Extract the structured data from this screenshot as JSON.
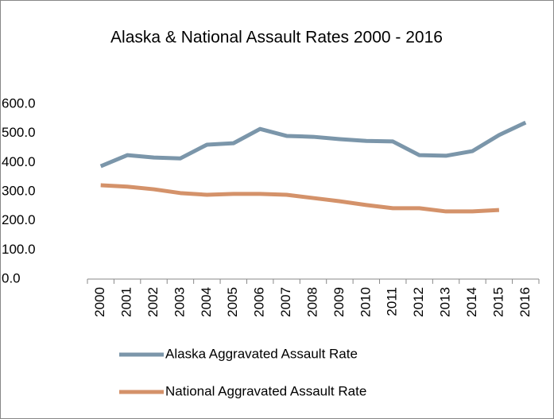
{
  "chart_data": {
    "type": "line",
    "title": "Alaska & National Assault Rates 2000 - 2016",
    "categories": [
      "2000",
      "2001",
      "2002",
      "2003",
      "2004",
      "2005",
      "2006",
      "2007",
      "2008",
      "2009",
      "2010",
      "2011",
      "2012",
      "2013",
      "2014",
      "2015",
      "2016"
    ],
    "series": [
      {
        "name": "Alaska Aggravated Assault Rate",
        "color": "#7b96aa",
        "values": [
          387,
          425,
          417,
          414,
          461,
          466,
          515,
          491,
          488,
          480,
          474,
          472,
          425,
          423,
          439,
          494,
          537
        ]
      },
      {
        "name": "National Aggravated Assault Rate",
        "color": "#d4926a",
        "values": [
          322,
          317,
          308,
          295,
          289,
          292,
          292,
          289,
          278,
          267,
          254,
          243,
          243,
          232,
          232,
          237,
          null
        ]
      }
    ],
    "ylim": [
      0,
      600
    ],
    "yticks": [
      {
        "value": 0,
        "label": "0.0"
      },
      {
        "value": 100,
        "label": "100.0"
      },
      {
        "value": 200,
        "label": "200.0"
      },
      {
        "value": 300,
        "label": "300.0"
      },
      {
        "value": 400,
        "label": "400.0"
      },
      {
        "value": 500,
        "label": "500.0"
      },
      {
        "value": 600,
        "label": "600.0"
      }
    ],
    "grid": false,
    "legend": "bottom"
  }
}
